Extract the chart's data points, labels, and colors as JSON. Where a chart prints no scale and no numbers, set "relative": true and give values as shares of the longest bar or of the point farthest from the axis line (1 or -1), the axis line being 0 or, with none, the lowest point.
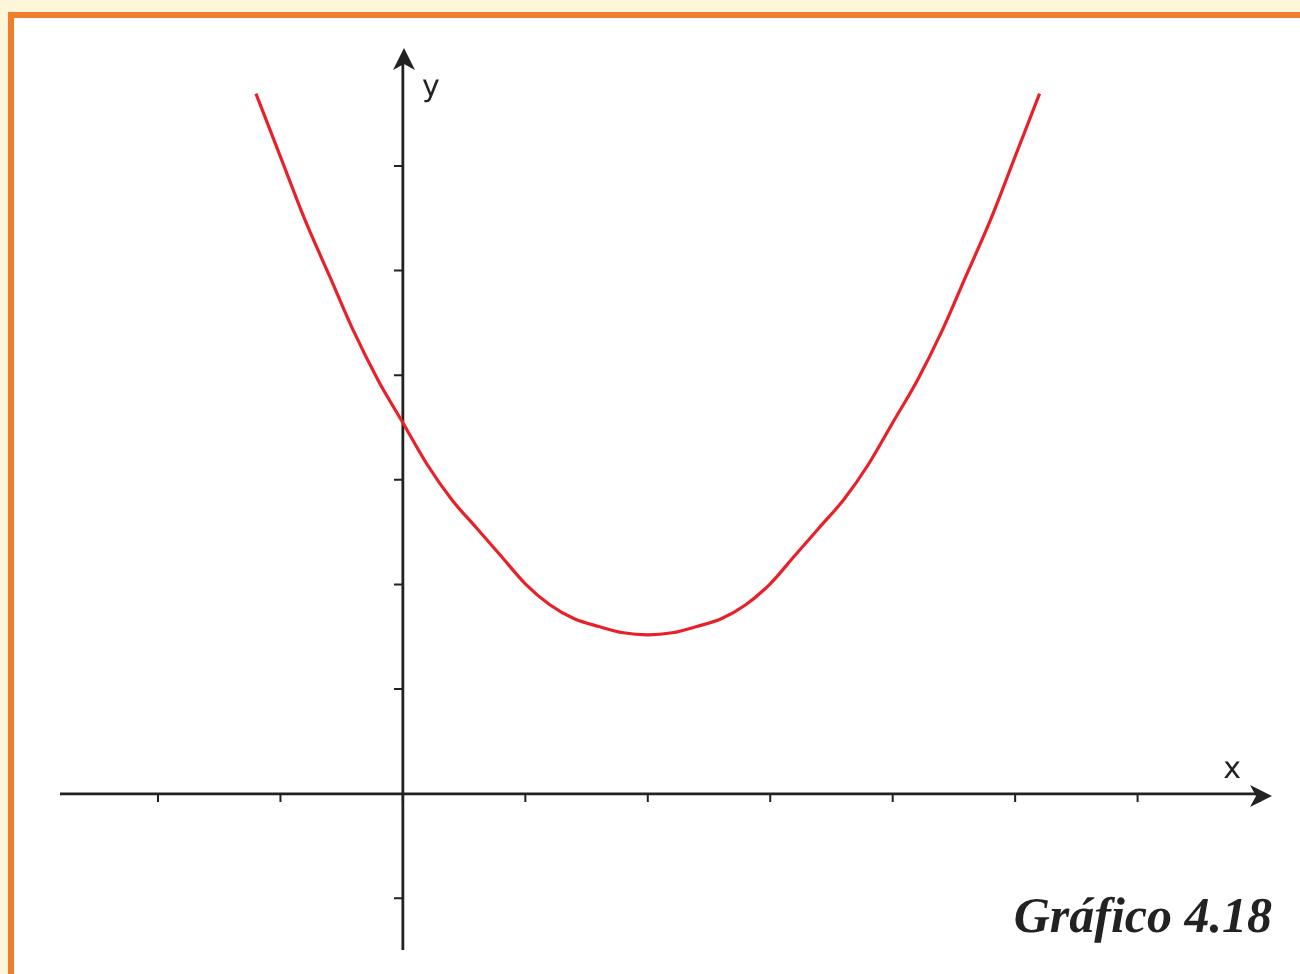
{
  "chart_data": {
    "type": "line",
    "relative": true,
    "xlabel": "x",
    "ylabel": "y",
    "annotations": [
      "Gráfico 4.18"
    ],
    "marker": "none",
    "legend": false,
    "categories": [
      null,
      null,
      null,
      null,
      null,
      null,
      null,
      null,
      null,
      null,
      null,
      null,
      null,
      null,
      null,
      null,
      null,
      null,
      null,
      null,
      null,
      null,
      null,
      null,
      null,
      null,
      null,
      null,
      null,
      null,
      null,
      null,
      null,
      null,
      null,
      null,
      null,
      null,
      null,
      null,
      null,
      null,
      null,
      null,
      null,
      null,
      null,
      null,
      null,
      null
    ],
    "series": [
      {
        "color": "#e8202a",
        "values": [
          null,
          null,
          null,
          null,
          null,
          null,
          null,
          null,
          1.0,
          0.91,
          0.82,
          0.74,
          0.66,
          0.59,
          0.53,
          0.47,
          0.42,
          0.38,
          0.34,
          0.3,
          0.27,
          0.25,
          0.239,
          0.23,
          0.227,
          0.23,
          0.239,
          0.25,
          0.27,
          0.3,
          0.34,
          0.38,
          0.42,
          0.47,
          0.53,
          0.59,
          0.66,
          0.74,
          0.82,
          0.91,
          1.0,
          null,
          null,
          null,
          null,
          null,
          null,
          null,
          null,
          null
        ]
      }
    ]
  }
}
